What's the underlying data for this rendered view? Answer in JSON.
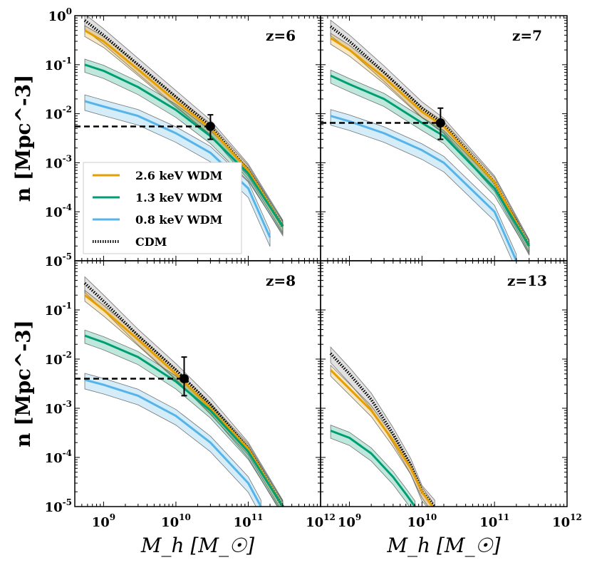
{
  "chart_data": {
    "type": "line",
    "layout": "2x2 panels, shared axes",
    "xlabel": "M_h [M_☉]",
    "ylabel": "n [Mpc^-3]",
    "xscale": "log",
    "yscale": "log",
    "xlim": [
      400000000.0,
      1000000000000.0
    ],
    "ylim": [
      1e-05,
      1
    ],
    "x_ticks": [
      {
        "base": "10",
        "exp": "9"
      },
      {
        "base": "10",
        "exp": "10"
      },
      {
        "base": "10",
        "exp": "11"
      },
      {
        "base": "10",
        "exp": "12"
      }
    ],
    "y_ticks": [
      {
        "base": "10",
        "exp": "0"
      },
      {
        "base": "10",
        "exp": "-1"
      },
      {
        "base": "10",
        "exp": "-2"
      },
      {
        "base": "10",
        "exp": "-3"
      },
      {
        "base": "10",
        "exp": "-4"
      },
      {
        "base": "10",
        "exp": "-5"
      }
    ],
    "legend": {
      "location": "lower-left of top-left panel",
      "entries": [
        {
          "label": "2.6 keV WDM",
          "color": "#E69F00",
          "style": "solid"
        },
        {
          "label": "1.3 keV WDM",
          "color": "#009E73",
          "style": "solid"
        },
        {
          "label": "0.8 keV WDM",
          "color": "#56B4E9",
          "style": "solid"
        },
        {
          "label": "CDM",
          "color": "#000000",
          "style": "dotted"
        }
      ]
    },
    "panels": [
      {
        "label": "z=6",
        "series": [
          {
            "name": "CDM",
            "x": [
              550000000.0,
              1000000000.0,
              3000000000.0,
              10000000000.0,
              30000000000.0,
              100000000000.0,
              300000000000.0
            ],
            "y": [
              0.8,
              0.4,
              0.1,
              0.022,
              0.0055,
              0.0007,
              5e-05
            ]
          },
          {
            "name": "2.6 keV WDM",
            "x": [
              550000000.0,
              1000000000.0,
              3000000000.0,
              10000000000.0,
              30000000000.0,
              100000000000.0,
              300000000000.0
            ],
            "y": [
              0.5,
              0.3,
              0.08,
              0.018,
              0.005,
              0.0007,
              5e-05
            ]
          },
          {
            "name": "1.3 keV WDM",
            "x": [
              550000000.0,
              1000000000.0,
              3000000000.0,
              10000000000.0,
              30000000000.0,
              100000000000.0,
              300000000000.0
            ],
            "y": [
              0.1,
              0.075,
              0.035,
              0.012,
              0.0035,
              0.0006,
              5e-05
            ]
          },
          {
            "name": "0.8 keV WDM",
            "x": [
              550000000.0,
              1000000000.0,
              3000000000.0,
              10000000000.0,
              30000000000.0,
              100000000000.0,
              200000000000.0
            ],
            "y": [
              0.018,
              0.014,
              0.009,
              0.004,
              0.0016,
              0.0003,
              3e-05
            ]
          }
        ],
        "observation": {
          "x": 30000000000.0,
          "y": 0.0055,
          "y_upper": 0.0095,
          "y_lower": 0.003,
          "limit_line": {
            "x_from": 400000000.0,
            "x_to": 30000000000.0,
            "y": 0.0055
          }
        }
      },
      {
        "label": "z=7",
        "series": [
          {
            "name": "CDM",
            "x": [
              550000000.0,
              1000000000.0,
              3000000000.0,
              10000000000.0,
              20000000000.0,
              100000000000.0,
              300000000000.0
            ],
            "y": [
              0.6,
              0.3,
              0.07,
              0.013,
              0.006,
              0.0004,
              2e-05
            ]
          },
          {
            "name": "2.6 keV WDM",
            "x": [
              550000000.0,
              1000000000.0,
              3000000000.0,
              10000000000.0,
              20000000000.0,
              100000000000.0,
              300000000000.0
            ],
            "y": [
              0.35,
              0.2,
              0.055,
              0.011,
              0.0055,
              0.0004,
              2e-05
            ]
          },
          {
            "name": "1.3 keV WDM",
            "x": [
              550000000.0,
              1000000000.0,
              3000000000.0,
              10000000000.0,
              20000000000.0,
              100000000000.0,
              300000000000.0
            ],
            "y": [
              0.06,
              0.04,
              0.02,
              0.0065,
              0.0035,
              0.0003,
              2e-05
            ]
          },
          {
            "name": "0.8 keV WDM",
            "x": [
              550000000.0,
              1000000000.0,
              3000000000.0,
              10000000000.0,
              20000000000.0,
              100000000000.0,
              200000000000.0
            ],
            "y": [
              0.009,
              0.007,
              0.004,
              0.0018,
              0.001,
              0.0001,
              1e-05
            ]
          }
        ],
        "observation": {
          "x": 18000000000.0,
          "y": 0.0065,
          "y_upper": 0.013,
          "y_lower": 0.003,
          "limit_line": {
            "x_from": 400000000.0,
            "x_to": 18000000000.0,
            "y": 0.0065
          }
        }
      },
      {
        "label": "z=8",
        "series": [
          {
            "name": "CDM",
            "x": [
              550000000.0,
              1000000000.0,
              3000000000.0,
              10000000000.0,
              30000000000.0,
              100000000000.0,
              300000000000.0
            ],
            "y": [
              0.35,
              0.15,
              0.03,
              0.006,
              0.0012,
              0.00015,
              1e-05
            ]
          },
          {
            "name": "2.6 keV WDM",
            "x": [
              550000000.0,
              1000000000.0,
              3000000000.0,
              10000000000.0,
              30000000000.0,
              100000000000.0,
              300000000000.0
            ],
            "y": [
              0.2,
              0.1,
              0.025,
              0.005,
              0.001,
              0.00015,
              1e-05
            ]
          },
          {
            "name": "1.3 keV WDM",
            "x": [
              550000000.0,
              1000000000.0,
              3000000000.0,
              10000000000.0,
              30000000000.0,
              100000000000.0,
              300000000000.0
            ],
            "y": [
              0.03,
              0.022,
              0.011,
              0.0035,
              0.0009,
              0.00013,
              1e-05
            ]
          },
          {
            "name": "0.8 keV WDM",
            "x": [
              550000000.0,
              1000000000.0,
              3000000000.0,
              10000000000.0,
              30000000000.0,
              100000000000.0,
              150000000000.0
            ],
            "y": [
              0.0038,
              0.003,
              0.0018,
              0.0007,
              0.0002,
              3e-05,
              1e-05
            ]
          }
        ],
        "observation": {
          "x": 13000000000.0,
          "y": 0.004,
          "y_upper": 0.011,
          "y_lower": 0.0018,
          "limit_line": {
            "x_from": 400000000.0,
            "x_to": 13000000000.0,
            "y": 0.004
          }
        }
      },
      {
        "label": "z=13",
        "series": [
          {
            "name": "CDM",
            "x": [
              550000000.0,
              1000000000.0,
              2000000000.0,
              4000000000.0,
              7000000000.0,
              10000000000.0,
              15000000000.0
            ],
            "y": [
              0.013,
              0.005,
              0.0015,
              0.0003,
              7e-05,
              2e-05,
              1e-05
            ]
          },
          {
            "name": "2.6 keV WDM",
            "x": [
              550000000.0,
              1000000000.0,
              2000000000.0,
              4000000000.0,
              7000000000.0,
              10000000000.0,
              14000000000.0
            ],
            "y": [
              0.006,
              0.0025,
              0.0009,
              0.00022,
              6e-05,
              2e-05,
              1e-05
            ]
          },
          {
            "name": "1.3 keV WDM",
            "x": [
              550000000.0,
              1000000000.0,
              2000000000.0,
              4000000000.0,
              6000000000.0,
              8000000000.0
            ],
            "y": [
              0.00035,
              0.00025,
              0.00012,
              4e-05,
              1.8e-05,
              1e-05
            ]
          }
        ]
      }
    ]
  }
}
